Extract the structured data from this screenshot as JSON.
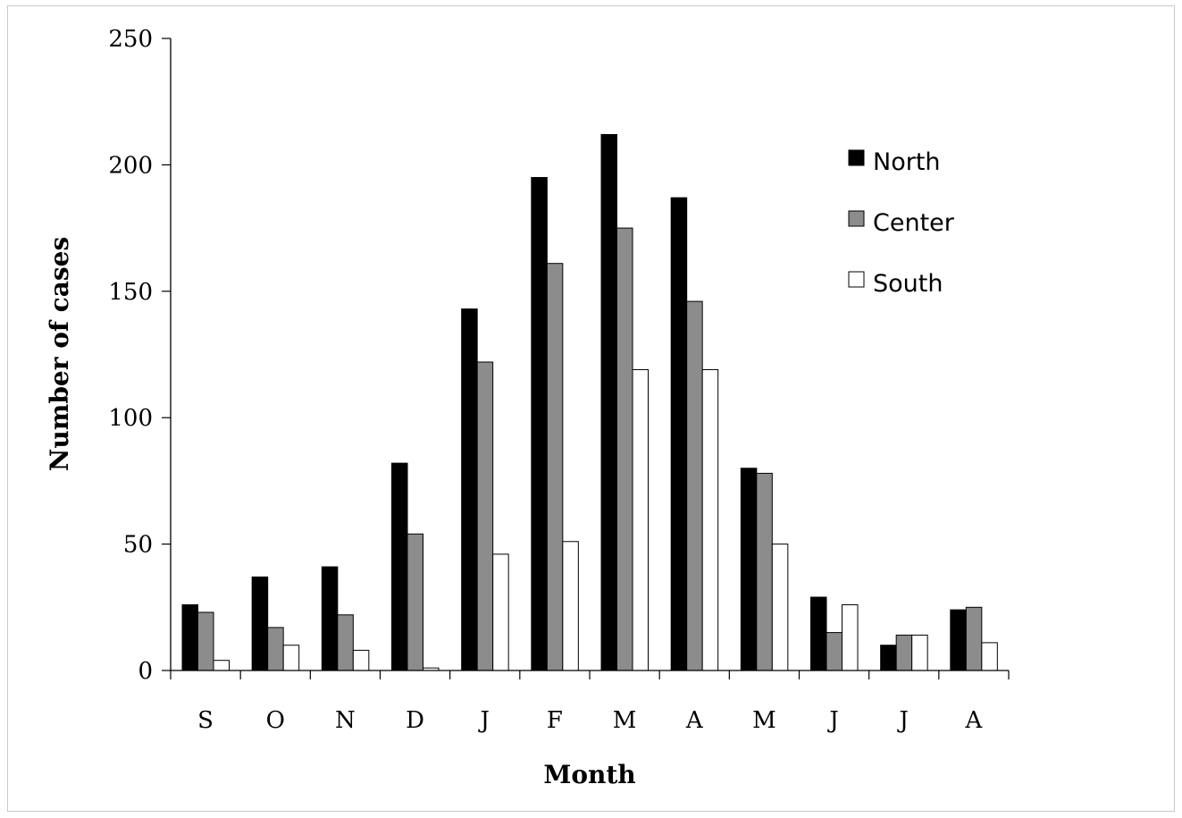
{
  "chart_data": {
    "type": "bar",
    "title": "",
    "xlabel": "Month",
    "ylabel": "Number of cases",
    "categories": [
      "S",
      "O",
      "N",
      "D",
      "J",
      "F",
      "M",
      "A",
      "M",
      "J",
      "J",
      "A"
    ],
    "ylim": [
      0,
      250
    ],
    "yticks": [
      "0",
      "50",
      "100",
      "150",
      "200",
      "250"
    ],
    "grid": false,
    "legend_position": "top-right",
    "series": [
      {
        "name": "North",
        "color": "#000000",
        "values": [
          26,
          37,
          41,
          82,
          143,
          195,
          212,
          187,
          80,
          29,
          10,
          24
        ]
      },
      {
        "name": "Center",
        "color": "#8c8c8c",
        "values": [
          23,
          17,
          22,
          54,
          122,
          161,
          175,
          146,
          78,
          15,
          14,
          25
        ]
      },
      {
        "name": "South",
        "color": "#ffffff",
        "values": [
          4,
          10,
          8,
          1,
          46,
          51,
          119,
          119,
          50,
          26,
          14,
          11
        ]
      }
    ]
  }
}
